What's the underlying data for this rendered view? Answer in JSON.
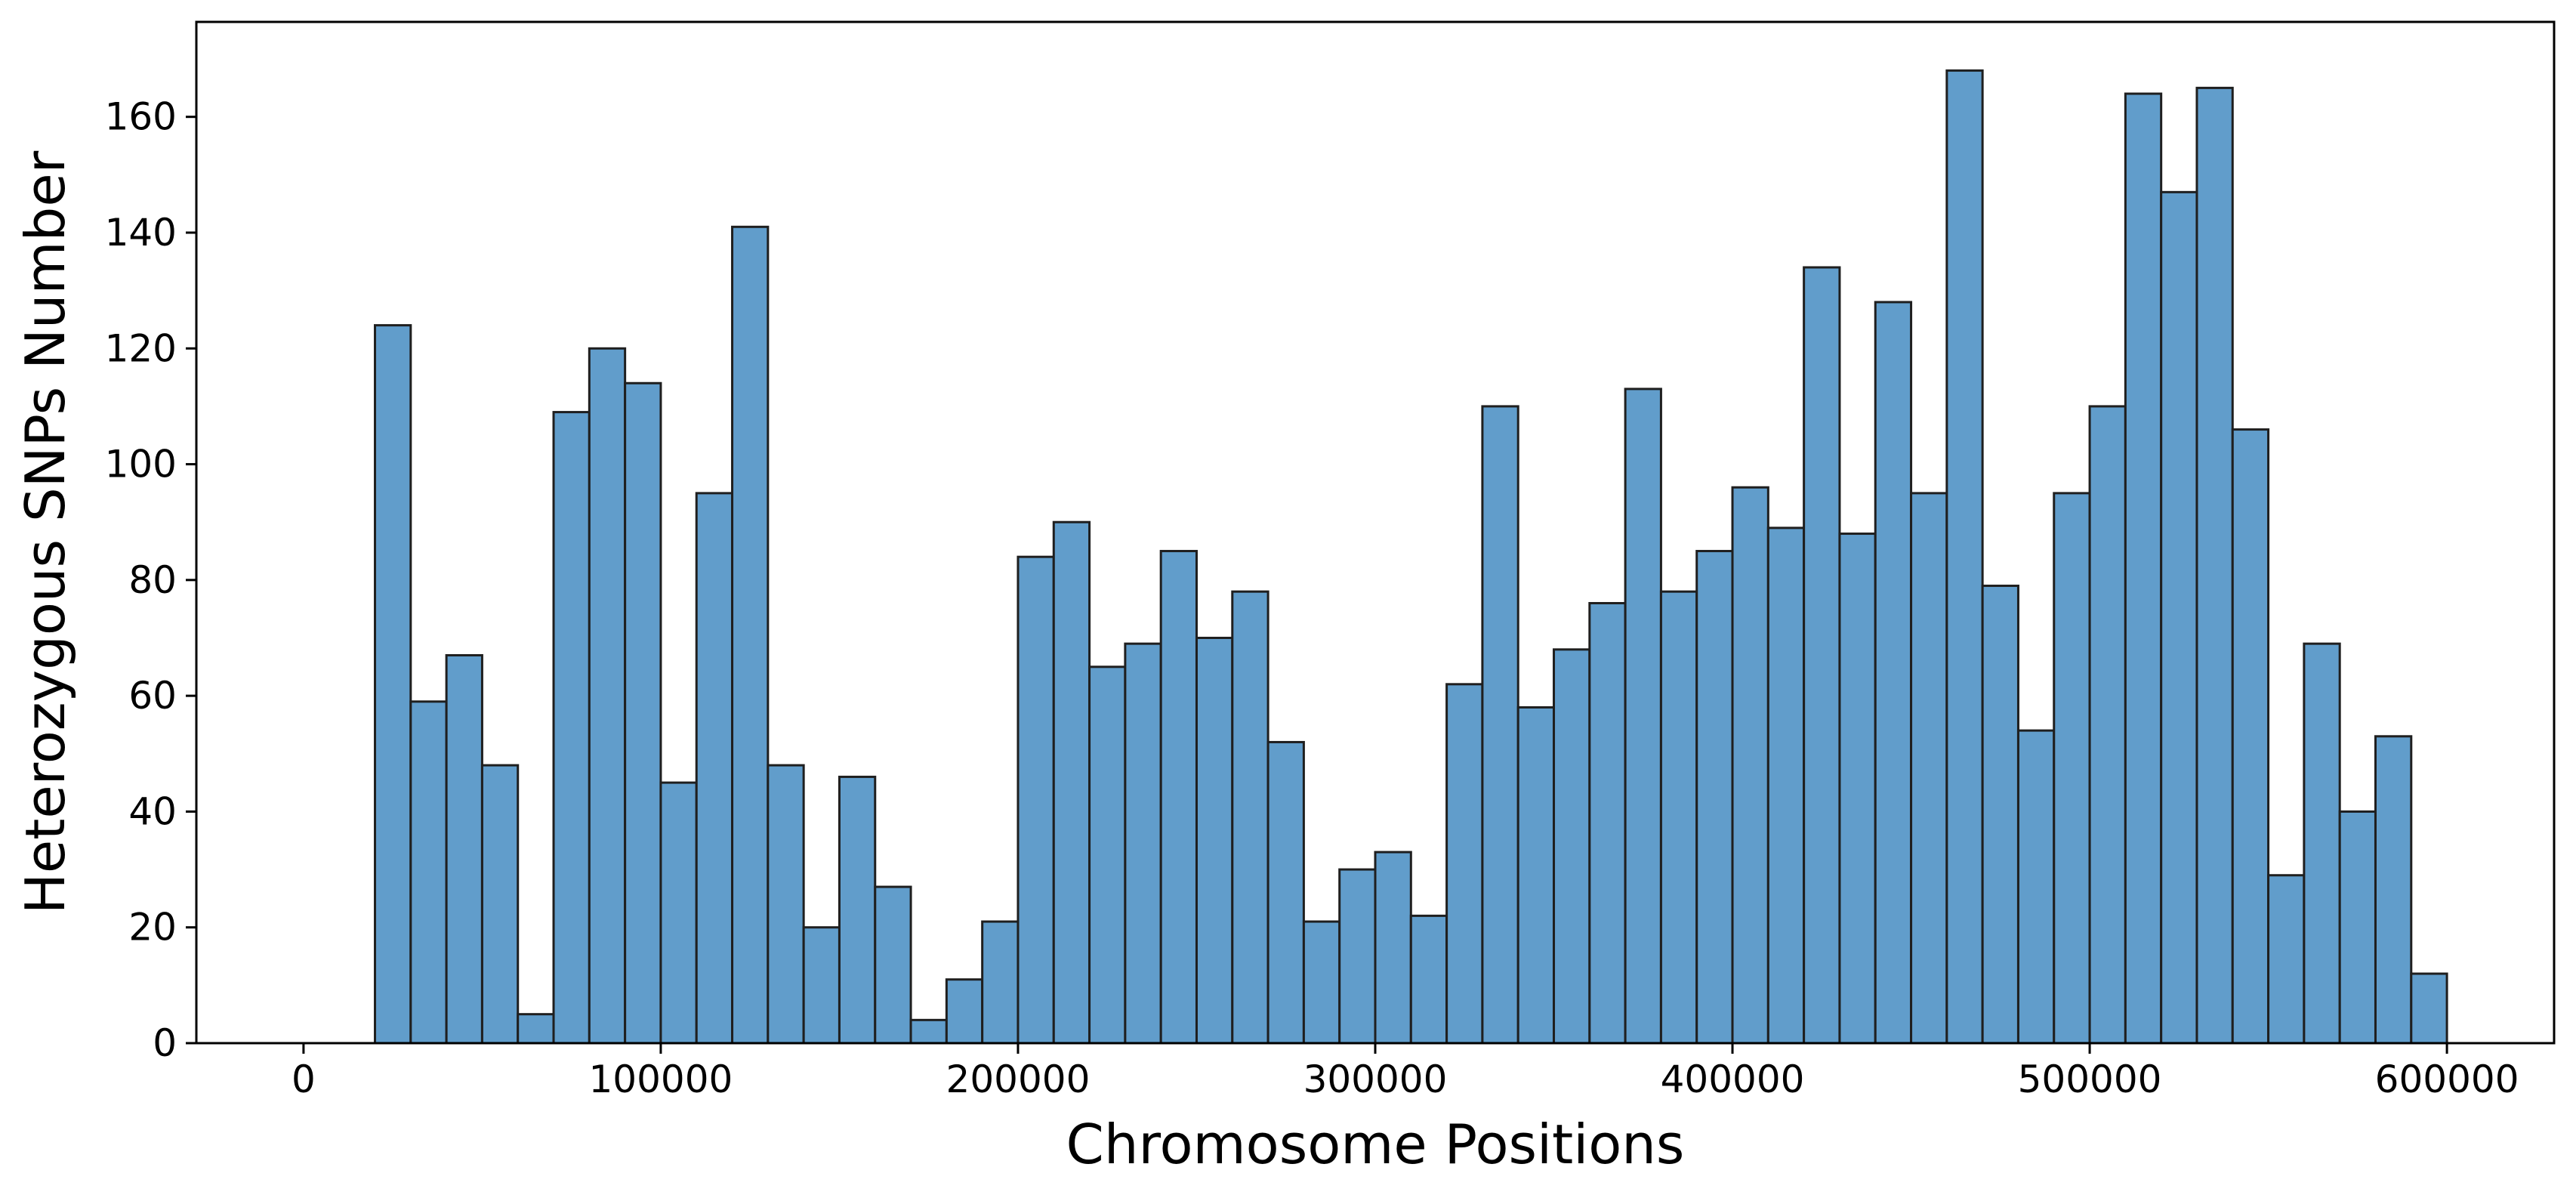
{
  "chart_data": {
    "type": "bar",
    "chart_kind": "histogram",
    "title": "",
    "xlabel": "Chromosome Positions",
    "ylabel": "Heterozygous SNPs Number",
    "bin_width": 10000,
    "bin_starts": [
      0,
      10000,
      20000,
      30000,
      40000,
      50000,
      60000,
      70000,
      80000,
      90000,
      100000,
      110000,
      120000,
      130000,
      140000,
      150000,
      160000,
      170000,
      180000,
      190000,
      200000,
      210000,
      220000,
      230000,
      240000,
      250000,
      260000,
      270000,
      280000,
      290000,
      300000,
      310000,
      320000,
      330000,
      340000,
      350000,
      360000,
      370000,
      380000,
      390000,
      400000,
      410000,
      420000,
      430000,
      440000,
      450000,
      460000,
      470000,
      480000,
      490000,
      500000,
      510000,
      520000,
      530000,
      540000,
      550000,
      560000,
      570000,
      580000,
      590000
    ],
    "values": [
      0,
      0,
      124,
      59,
      67,
      48,
      5,
      109,
      120,
      114,
      45,
      95,
      141,
      48,
      20,
      46,
      27,
      4,
      11,
      21,
      84,
      90,
      65,
      69,
      85,
      70,
      78,
      52,
      21,
      30,
      33,
      22,
      62,
      110,
      58,
      68,
      76,
      113,
      78,
      85,
      96,
      89,
      134,
      88,
      128,
      95,
      168,
      79,
      54,
      95,
      110,
      164,
      147,
      165,
      106,
      29,
      69,
      40,
      53,
      12
    ],
    "xlim": [
      -30000,
      630000
    ],
    "ylim": [
      0,
      176.4
    ],
    "x_ticks": [
      0,
      100000,
      200000,
      300000,
      400000,
      500000,
      600000
    ],
    "x_tick_labels": [
      "0",
      "100000",
      "200000",
      "300000",
      "400000",
      "500000",
      "600000"
    ],
    "y_ticks": [
      0,
      20,
      40,
      60,
      80,
      100,
      120,
      140,
      160
    ],
    "y_tick_labels": [
      "0",
      "20",
      "40",
      "60",
      "80",
      "100",
      "120",
      "140",
      "160"
    ],
    "grid": false,
    "legend": "none",
    "bar_color": "#619dcb",
    "edge_color": "#1f1f1f",
    "axis_color": "#000000"
  }
}
